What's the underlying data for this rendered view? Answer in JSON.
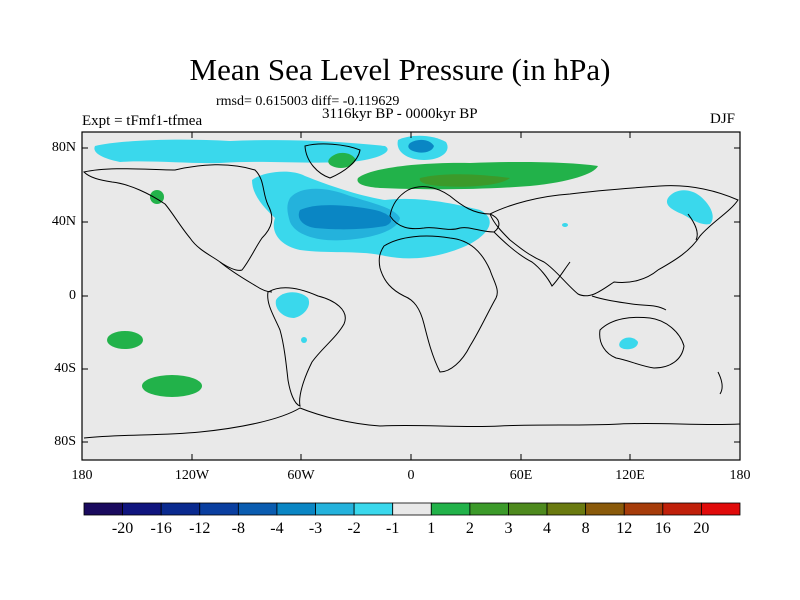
{
  "title": "Mean Sea Level Pressure (in hPa)",
  "stats": "rmsd= 0.615003 diff= -0.119629",
  "period": "3116kyr BP - 0000kyr BP",
  "experiment": "Expt = tFmf1-tfmea",
  "season": "DJF",
  "lat_labels": [
    "80N",
    "40N",
    "0",
    "40S",
    "80S"
  ],
  "lon_labels": [
    "180",
    "120W",
    "60W",
    "0",
    "60E",
    "120E",
    "180"
  ],
  "colorbar": {
    "labels": [
      "-20",
      "-16",
      "-12",
      "-8",
      "-4",
      "-3",
      "-2",
      "-1",
      "1",
      "2",
      "3",
      "4",
      "8",
      "12",
      "16",
      "20"
    ],
    "colors": [
      "#1a0a5e",
      "#10157e",
      "#0a2a8f",
      "#0a3fa0",
      "#0a5cb0",
      "#0a86c4",
      "#24b2dc",
      "#3ad8ec",
      "#e9e9e9",
      "#22b24a",
      "#3c9a2a",
      "#4e8a1e",
      "#6a7a10",
      "#8a5a0a",
      "#a63c0a",
      "#c0200a",
      "#e00a0a"
    ]
  },
  "colors": {
    "background": "#e9e9e9",
    "neg1": "#3ad8ec",
    "neg2": "#24b2dc",
    "neg3": "#0a86c4",
    "pos1": "#22b24a",
    "pos2": "#3c9a2a"
  }
}
